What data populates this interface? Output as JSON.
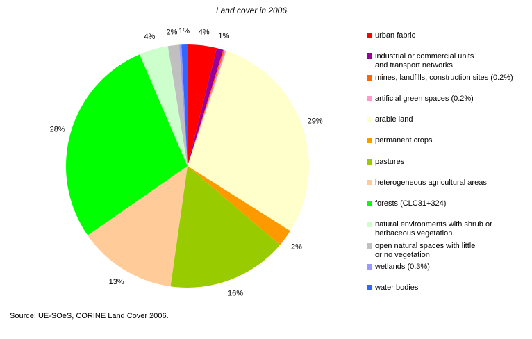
{
  "chart_data": {
    "type": "pie",
    "title": "Land cover in 2006",
    "slices": [
      {
        "name": "urban fabric",
        "value": 3.9,
        "label": "4%",
        "color": "#ff0000"
      },
      {
        "name": "industrial or commercial units\nand transport networks",
        "value": 0.9,
        "label": "1%",
        "color": "#990099"
      },
      {
        "name": "mines, landfills, construction sites (0.2%)",
        "value": 0.2,
        "label": "",
        "color": "#ff6600"
      },
      {
        "name": "artificial green spaces (0.2%)",
        "value": 0.2,
        "label": "",
        "color": "#ff99cc"
      },
      {
        "name": "arable land",
        "value": 29.0,
        "label": "29%",
        "color": "#ffffcc"
      },
      {
        "name": "permanent crops",
        "value": 2.3,
        "label": "2%",
        "color": "#ff9900"
      },
      {
        "name": "pastures",
        "value": 16.1,
        "label": "16%",
        "color": "#99cc00"
      },
      {
        "name": "heterogeneous agricultural areas",
        "value": 13.2,
        "label": "13%",
        "color": "#ffcc99"
      },
      {
        "name": "forests (CLC31+324)",
        "value": 28.4,
        "label": "28%",
        "color": "#00ff00"
      },
      {
        "name": "natural environments with shrub or\nherbaceous vegetation",
        "value": 3.9,
        "label": "4%",
        "color": "#ccffcc"
      },
      {
        "name": "open natural spaces with little\nor no vegetation",
        "value": 1.5,
        "label": "2%",
        "color": "#c0c0c0"
      },
      {
        "name": "wetlands (0.3%)",
        "value": 0.3,
        "label": "",
        "color": "#9999ff"
      },
      {
        "name": "water bodies",
        "value": 0.8,
        "label": "1%",
        "color": "#3366ff"
      }
    ],
    "legend_position": "right"
  },
  "source_note": "Source: UE-SOeS, CORINE Land Cover 2006."
}
